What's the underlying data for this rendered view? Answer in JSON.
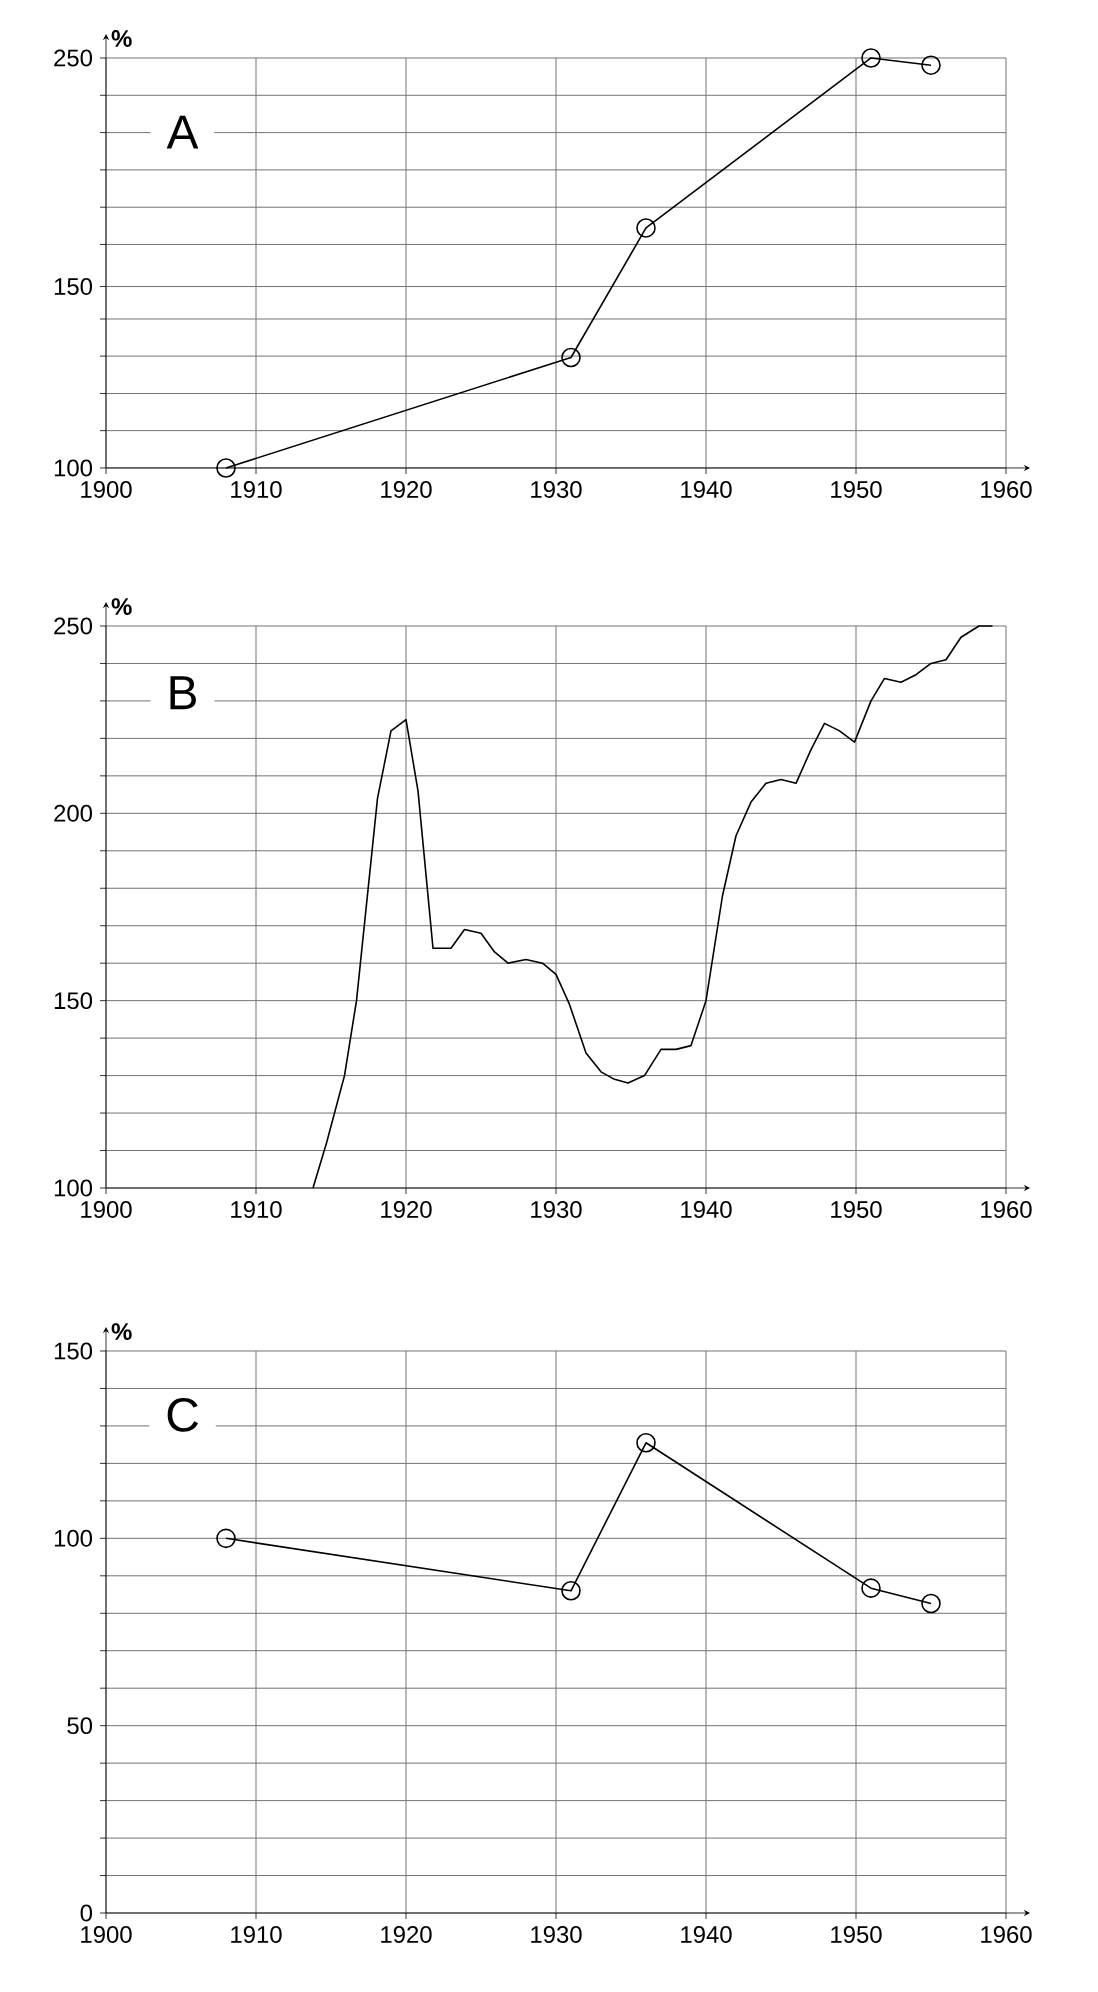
{
  "chart_data": [
    {
      "type": "line",
      "title": "A",
      "ylabel": "%",
      "log": "y",
      "marker": "circle",
      "line_style": "solid",
      "grid": true,
      "x": [
        1908,
        1931,
        1936,
        1951,
        1955
      ],
      "series": [
        {
          "color": "#000000",
          "values": [
            100,
            128,
            171,
            250,
            246
          ]
        }
      ],
      "xlim": [
        1900,
        1960
      ],
      "xticks": [
        1900,
        1910,
        1920,
        1930,
        1940,
        1950,
        1960
      ],
      "ylim": [
        100,
        250
      ],
      "yticks": [
        100,
        {
          "value": 108.7,
          "label": null
        },
        {
          "value": 118.1,
          "label": null
        },
        {
          "value": 128.4,
          "label": null
        },
        {
          "value": 139.5,
          "label": null
        },
        150,
        {
          "value": 164.8,
          "label": null
        },
        {
          "value": 179.1,
          "label": null
        },
        {
          "value": 194.7,
          "label": null
        },
        {
          "value": 211.6,
          "label": null
        },
        {
          "value": 230,
          "label": null
        },
        250
      ]
    },
    {
      "type": "line",
      "title": "B",
      "ylabel": "%",
      "line_style": "solid",
      "grid": true,
      "x": [
        1913.8,
        1914.7,
        1915.9,
        1916.7,
        1918.1,
        1919,
        1920,
        1920.8,
        1921.8,
        1923,
        1923.9,
        1925,
        1925.9,
        1926.8,
        1928,
        1929.1,
        1930,
        1930.9,
        1932,
        1933,
        1933.9,
        1934.8,
        1935.9,
        1937,
        1938,
        1939,
        1940,
        1941.1,
        1942,
        1943,
        1944,
        1945,
        1946,
        1947,
        1947.9,
        1948.9,
        1949.9,
        1951,
        1951.9,
        1953,
        1954,
        1955,
        1956,
        1957,
        1958.2,
        1959.1
      ],
      "series": [
        {
          "color": "#000000",
          "values": [
            100,
            112,
            130,
            150,
            204,
            222,
            225,
            206,
            164,
            164,
            169,
            168,
            163,
            160,
            161,
            160,
            157,
            149,
            136,
            131,
            129,
            128,
            130,
            137,
            137,
            138,
            150,
            178,
            194,
            203,
            208,
            209,
            208,
            217,
            224,
            222,
            219,
            230,
            236,
            235,
            237,
            240,
            241,
            247,
            250,
            250
          ]
        }
      ],
      "xlim": [
        1900,
        1960
      ],
      "xticks": [
        1900,
        1910,
        1920,
        1930,
        1940,
        1950,
        1960
      ],
      "ylim": [
        100,
        250
      ],
      "yticks": [
        100,
        {
          "value": 110,
          "label": null
        },
        {
          "value": 120,
          "label": null
        },
        {
          "value": 130,
          "label": null
        },
        {
          "value": 140,
          "label": null
        },
        150,
        {
          "value": 160,
          "label": null
        },
        {
          "value": 170,
          "label": null
        },
        {
          "value": 180,
          "label": null
        },
        {
          "value": 190,
          "label": null
        },
        200,
        {
          "value": 210,
          "label": null
        },
        {
          "value": 220,
          "label": null
        },
        {
          "value": 230,
          "label": null
        },
        {
          "value": 240,
          "label": null
        },
        250
      ]
    },
    {
      "type": "line",
      "title": "C",
      "ylabel": "%",
      "marker": "circle",
      "line_style": "solid",
      "grid": true,
      "x": [
        1908,
        1931,
        1936,
        1951,
        1955
      ],
      "series": [
        {
          "color": "#000000",
          "values": [
            100,
            86,
            125.5,
            86.7,
            82.6
          ]
        }
      ],
      "xlim": [
        1900,
        1960
      ],
      "xticks": [
        1900,
        1910,
        1920,
        1930,
        1940,
        1950,
        1960
      ],
      "ylim": [
        0,
        150
      ],
      "yticks": [
        0,
        {
          "value": 10,
          "label": null
        },
        {
          "value": 20,
          "label": null
        },
        {
          "value": 30,
          "label": null
        },
        {
          "value": 40,
          "label": null
        },
        50,
        {
          "value": 60,
          "label": null
        },
        {
          "value": 70,
          "label": null
        },
        {
          "value": 80,
          "label": null
        },
        {
          "value": 90,
          "label": null
        },
        100,
        {
          "value": 110,
          "label": null
        },
        {
          "value": 120,
          "label": null
        },
        {
          "value": 130,
          "label": null
        },
        {
          "value": 140,
          "label": null
        },
        150
      ]
    }
  ]
}
